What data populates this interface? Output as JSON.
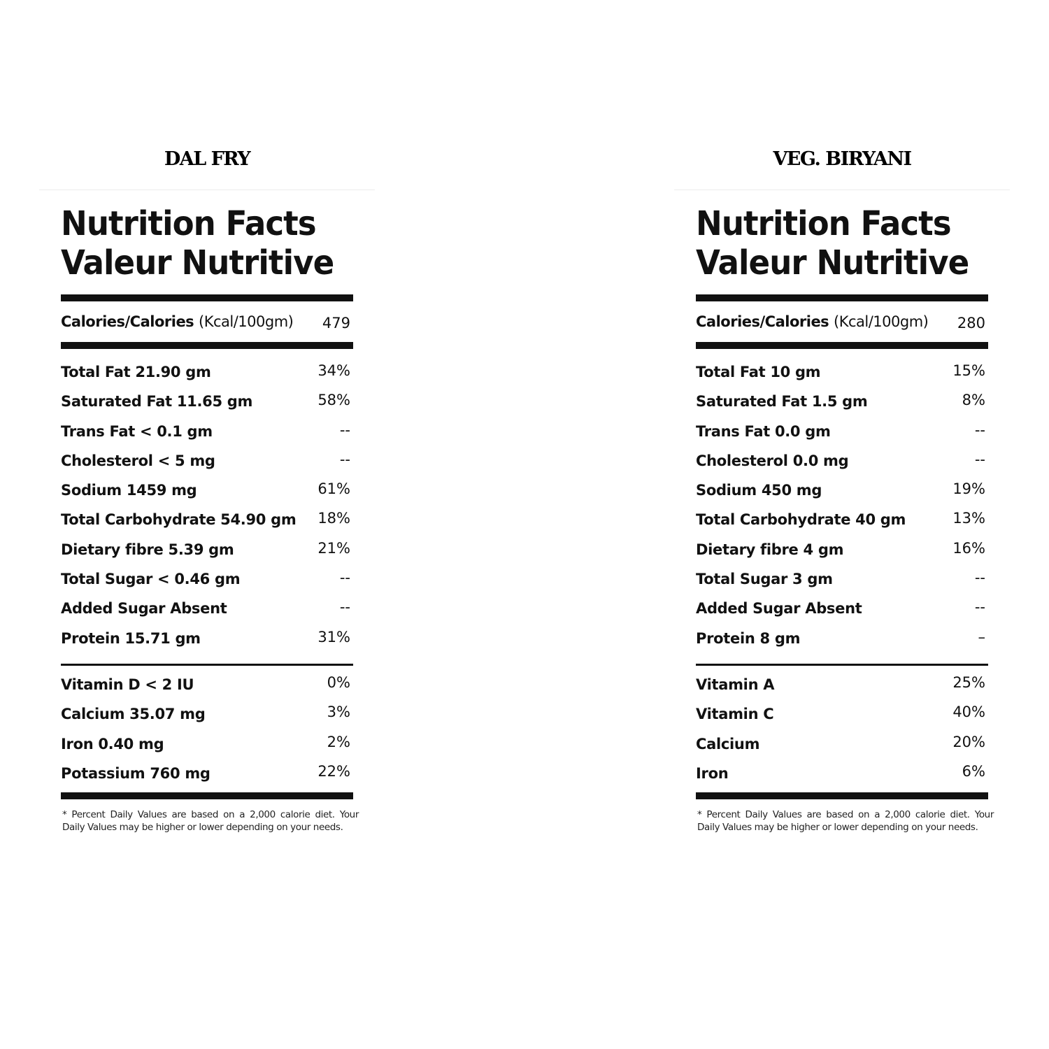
{
  "panels": [
    {
      "product_name": "DAL FRY",
      "title_en": "Nutrition Facts",
      "title_fr": "Valeur Nutritive",
      "calories_label": "Calories/Calories",
      "calories_unit": "(Kcal/100gm)",
      "calories_value": "479",
      "nutrients": [
        {
          "label": "Total Fat 21.90 gm",
          "value": "34%"
        },
        {
          "label": "Saturated Fat 11.65 gm",
          "value": "58%"
        },
        {
          "label": "Trans Fat < 0.1 gm",
          "value": "--"
        },
        {
          "label": "Cholesterol < 5 mg",
          "value": "--"
        },
        {
          "label": "Sodium 1459 mg",
          "value": "61%"
        },
        {
          "label": "Total Carbohydrate 54.90 gm",
          "value": "18%"
        },
        {
          "label": "Dietary fibre 5.39 gm",
          "value": "21%"
        },
        {
          "label": "Total Sugar < 0.46 gm",
          "value": "--"
        },
        {
          "label": "Added Sugar Absent",
          "value": "--"
        },
        {
          "label": "Protein 15.71 gm",
          "value": "31%"
        }
      ],
      "vitamins": [
        {
          "label": "Vitamin D < 2 IU",
          "value": "0%"
        },
        {
          "label": "Calcium 35.07 mg",
          "value": "3%"
        },
        {
          "label": "Iron 0.40 mg",
          "value": "2%"
        },
        {
          "label": "Potassium 760 mg",
          "value": "22%"
        }
      ],
      "footnote": "* Percent Daily Values are based on a 2,000 calorie diet. Your Daily Values may be higher or lower depending on your needs."
    },
    {
      "product_name": "VEG. BIRYANI",
      "title_en": "Nutrition Facts",
      "title_fr": "Valeur Nutritive",
      "calories_label": "Calories/Calories",
      "calories_unit": "(Kcal/100gm)",
      "calories_value": "280",
      "nutrients": [
        {
          "label": "Total Fat 10 gm",
          "value": "15%"
        },
        {
          "label": "Saturated Fat 1.5 gm",
          "value": "8%"
        },
        {
          "label": "Trans Fat 0.0 gm",
          "value": "--"
        },
        {
          "label": "Cholesterol 0.0 mg",
          "value": "--"
        },
        {
          "label": "Sodium 450 mg",
          "value": "19%"
        },
        {
          "label": "Total Carbohydrate 40 gm",
          "value": "13%"
        },
        {
          "label": "Dietary fibre 4 gm",
          "value": "16%"
        },
        {
          "label": "Total Sugar 3 gm",
          "value": "--"
        },
        {
          "label": "Added Sugar Absent",
          "value": "--"
        },
        {
          "label": "Protein 8 gm",
          "value": "–"
        }
      ],
      "vitamins": [
        {
          "label": "Vitamin A",
          "value": "25%"
        },
        {
          "label": "Vitamin C",
          "value": "40%"
        },
        {
          "label": "Calcium",
          "value": "20%"
        },
        {
          "label": "Iron",
          "value": "6%"
        }
      ],
      "footnote": "* Percent Daily Values are based on a 2,000 calorie diet. Your Daily Values may be higher or lower depending on your needs."
    }
  ]
}
